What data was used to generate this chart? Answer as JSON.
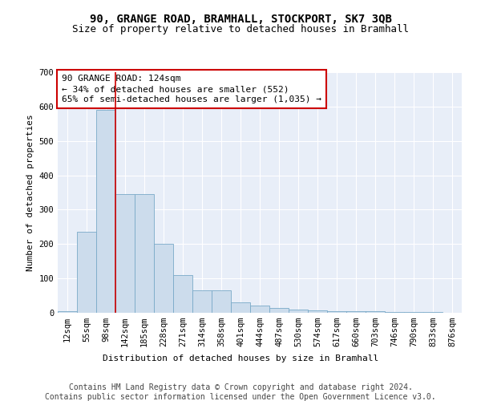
{
  "title1": "90, GRANGE ROAD, BRAMHALL, STOCKPORT, SK7 3QB",
  "title2": "Size of property relative to detached houses in Bramhall",
  "xlabel": "Distribution of detached houses by size in Bramhall",
  "ylabel": "Number of detached properties",
  "categories": [
    "12sqm",
    "55sqm",
    "98sqm",
    "142sqm",
    "185sqm",
    "228sqm",
    "271sqm",
    "314sqm",
    "358sqm",
    "401sqm",
    "444sqm",
    "487sqm",
    "530sqm",
    "574sqm",
    "617sqm",
    "660sqm",
    "703sqm",
    "746sqm",
    "790sqm",
    "833sqm",
    "876sqm"
  ],
  "values": [
    5,
    235,
    590,
    345,
    345,
    200,
    110,
    65,
    65,
    30,
    20,
    15,
    10,
    8,
    5,
    5,
    5,
    3,
    2,
    2,
    1
  ],
  "bar_color": "#ccdcec",
  "bar_edge_color": "#7aaac8",
  "vline_color": "#cc0000",
  "annotation_text": "90 GRANGE ROAD: 124sqm\n← 34% of detached houses are smaller (552)\n65% of semi-detached houses are larger (1,035) →",
  "annotation_box_color": "#cc0000",
  "ylim": [
    0,
    700
  ],
  "yticks": [
    0,
    100,
    200,
    300,
    400,
    500,
    600,
    700
  ],
  "footer1": "Contains HM Land Registry data © Crown copyright and database right 2024.",
  "footer2": "Contains public sector information licensed under the Open Government Licence v3.0.",
  "bg_color": "#e8eef8",
  "grid_color": "#ffffff",
  "title1_fontsize": 10,
  "title2_fontsize": 9,
  "axis_label_fontsize": 8,
  "tick_fontsize": 7.5,
  "annotation_fontsize": 8,
  "footer_fontsize": 7
}
